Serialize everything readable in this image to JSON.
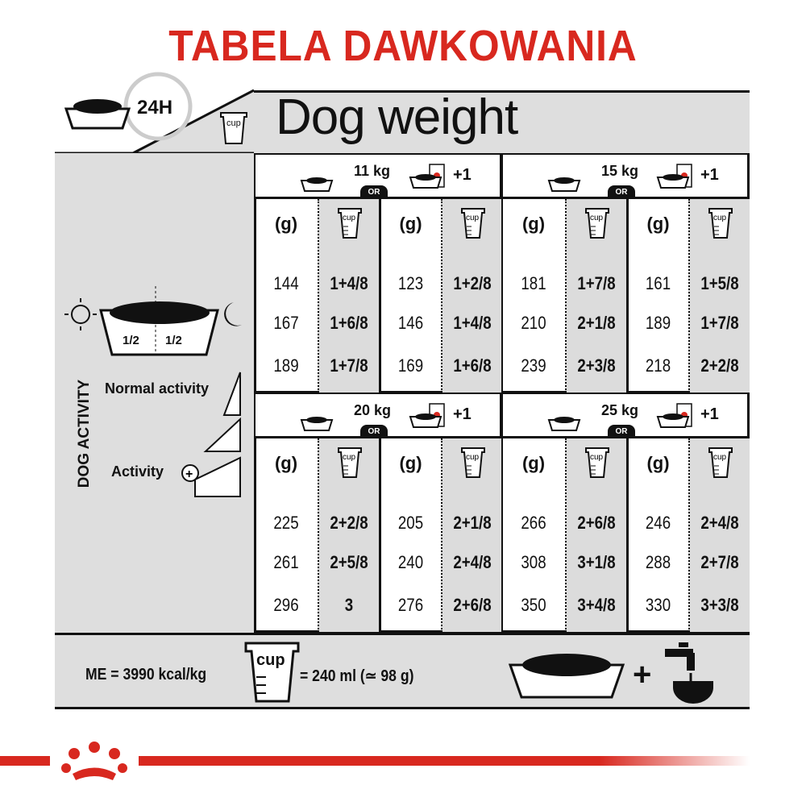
{
  "title": "TABELA DAWKOWANIA",
  "header": {
    "hours": "24H",
    "dog_weight": "Dog weight",
    "cup_label": "cup"
  },
  "side": {
    "half_left": "1/2",
    "half_right": "1/2",
    "normal_activity": "Normal activity",
    "activity": "Activity",
    "dog_activity": "DOG ACTIVITY"
  },
  "or_label": "OR",
  "plus_one": "+1",
  "col_grams": "(g)",
  "blocks": [
    {
      "weight": "11 kg",
      "dry_only": {
        "g": [
          "144",
          "167",
          "189"
        ],
        "cup": [
          "1+4/8",
          "1+6/8",
          "1+7/8"
        ]
      },
      "with_wet": {
        "g": [
          "123",
          "146",
          "169"
        ],
        "cup": [
          "1+2/8",
          "1+4/8",
          "1+6/8"
        ]
      }
    },
    {
      "weight": "15 kg",
      "dry_only": {
        "g": [
          "181",
          "210",
          "239"
        ],
        "cup": [
          "1+7/8",
          "2+1/8",
          "2+3/8"
        ]
      },
      "with_wet": {
        "g": [
          "161",
          "189",
          "218"
        ],
        "cup": [
          "1+5/8",
          "1+7/8",
          "2+2/8"
        ]
      }
    },
    {
      "weight": "20 kg",
      "dry_only": {
        "g": [
          "225",
          "261",
          "296"
        ],
        "cup": [
          "2+2/8",
          "2+5/8",
          "3"
        ]
      },
      "with_wet": {
        "g": [
          "205",
          "240",
          "276"
        ],
        "cup": [
          "2+1/8",
          "2+4/8",
          "2+6/8"
        ]
      }
    },
    {
      "weight": "25 kg",
      "dry_only": {
        "g": [
          "266",
          "308",
          "350"
        ],
        "cup": [
          "2+6/8",
          "3+1/8",
          "3+4/8"
        ]
      },
      "with_wet": {
        "g": [
          "246",
          "288",
          "330"
        ],
        "cup": [
          "2+4/8",
          "2+7/8",
          "3+3/8"
        ]
      }
    }
  ],
  "footer": {
    "energy": "ME = 3990 kcal/kg",
    "cup_equiv": "= 240 ml (≃ 98 g)",
    "cup_label": "cup",
    "plus": "+"
  },
  "colors": {
    "brand_red": "#d8281f",
    "panel_gray": "#dedede"
  },
  "icons": [
    "food-bowl-icon",
    "clock-icon",
    "measuring-cup-icon",
    "sun-icon",
    "moon-icon",
    "wet-food-pouch-icon",
    "water-tap-icon",
    "royal-canin-crown-logo"
  ]
}
